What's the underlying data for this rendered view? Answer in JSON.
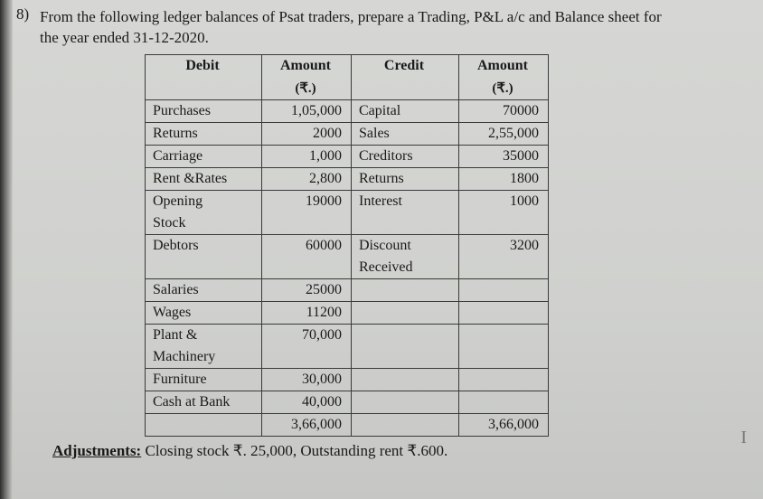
{
  "question_number": "8)",
  "question_line1": "From the following ledger balances of Psat traders, prepare a Trading, P&L a/c and Balance sheet for",
  "question_line2": "the year ended 31-12-2020.",
  "headers": {
    "debit": "Debit",
    "amount1": "Amount",
    "unit1": "(₹.)",
    "credit": "Credit",
    "amount2": "Amount",
    "unit2": "(₹.)"
  },
  "rows": [
    {
      "d": "Purchases",
      "a1": "1,05,000",
      "c": "Capital",
      "a2": "70000"
    },
    {
      "d": "Returns",
      "a1": "2000",
      "c": "Sales",
      "a2": "2,55,000"
    },
    {
      "d": "Carriage",
      "a1": "1,000",
      "c": "Creditors",
      "a2": "35000"
    },
    {
      "d": "Rent &Rates",
      "a1": "2,800",
      "c": "Returns",
      "a2": "1800"
    },
    {
      "d": "Opening Stock",
      "a1": "19000",
      "c": "Interest",
      "a2": "1000"
    },
    {
      "d": "Debtors",
      "a1": "60000",
      "c": "Discount Received",
      "a2": "3200"
    },
    {
      "d": "Salaries",
      "a1": "25000",
      "c": "",
      "a2": ""
    },
    {
      "d": "Wages",
      "a1": "11200",
      "c": "",
      "a2": ""
    },
    {
      "d": "Plant & Machinery",
      "a1": "70,000",
      "c": "",
      "a2": ""
    },
    {
      "d": "Furniture",
      "a1": "30,000",
      "c": "",
      "a2": ""
    },
    {
      "d": "Cash at Bank",
      "a1": "40,000",
      "c": "",
      "a2": ""
    }
  ],
  "totals": {
    "a1": "3,66,000",
    "a2": "3,66,000"
  },
  "adjust_label": "Adjustments:",
  "adjust_text": " Closing stock ₹. 25,000, Outstanding rent ₹.600.",
  "right_mark": "I"
}
